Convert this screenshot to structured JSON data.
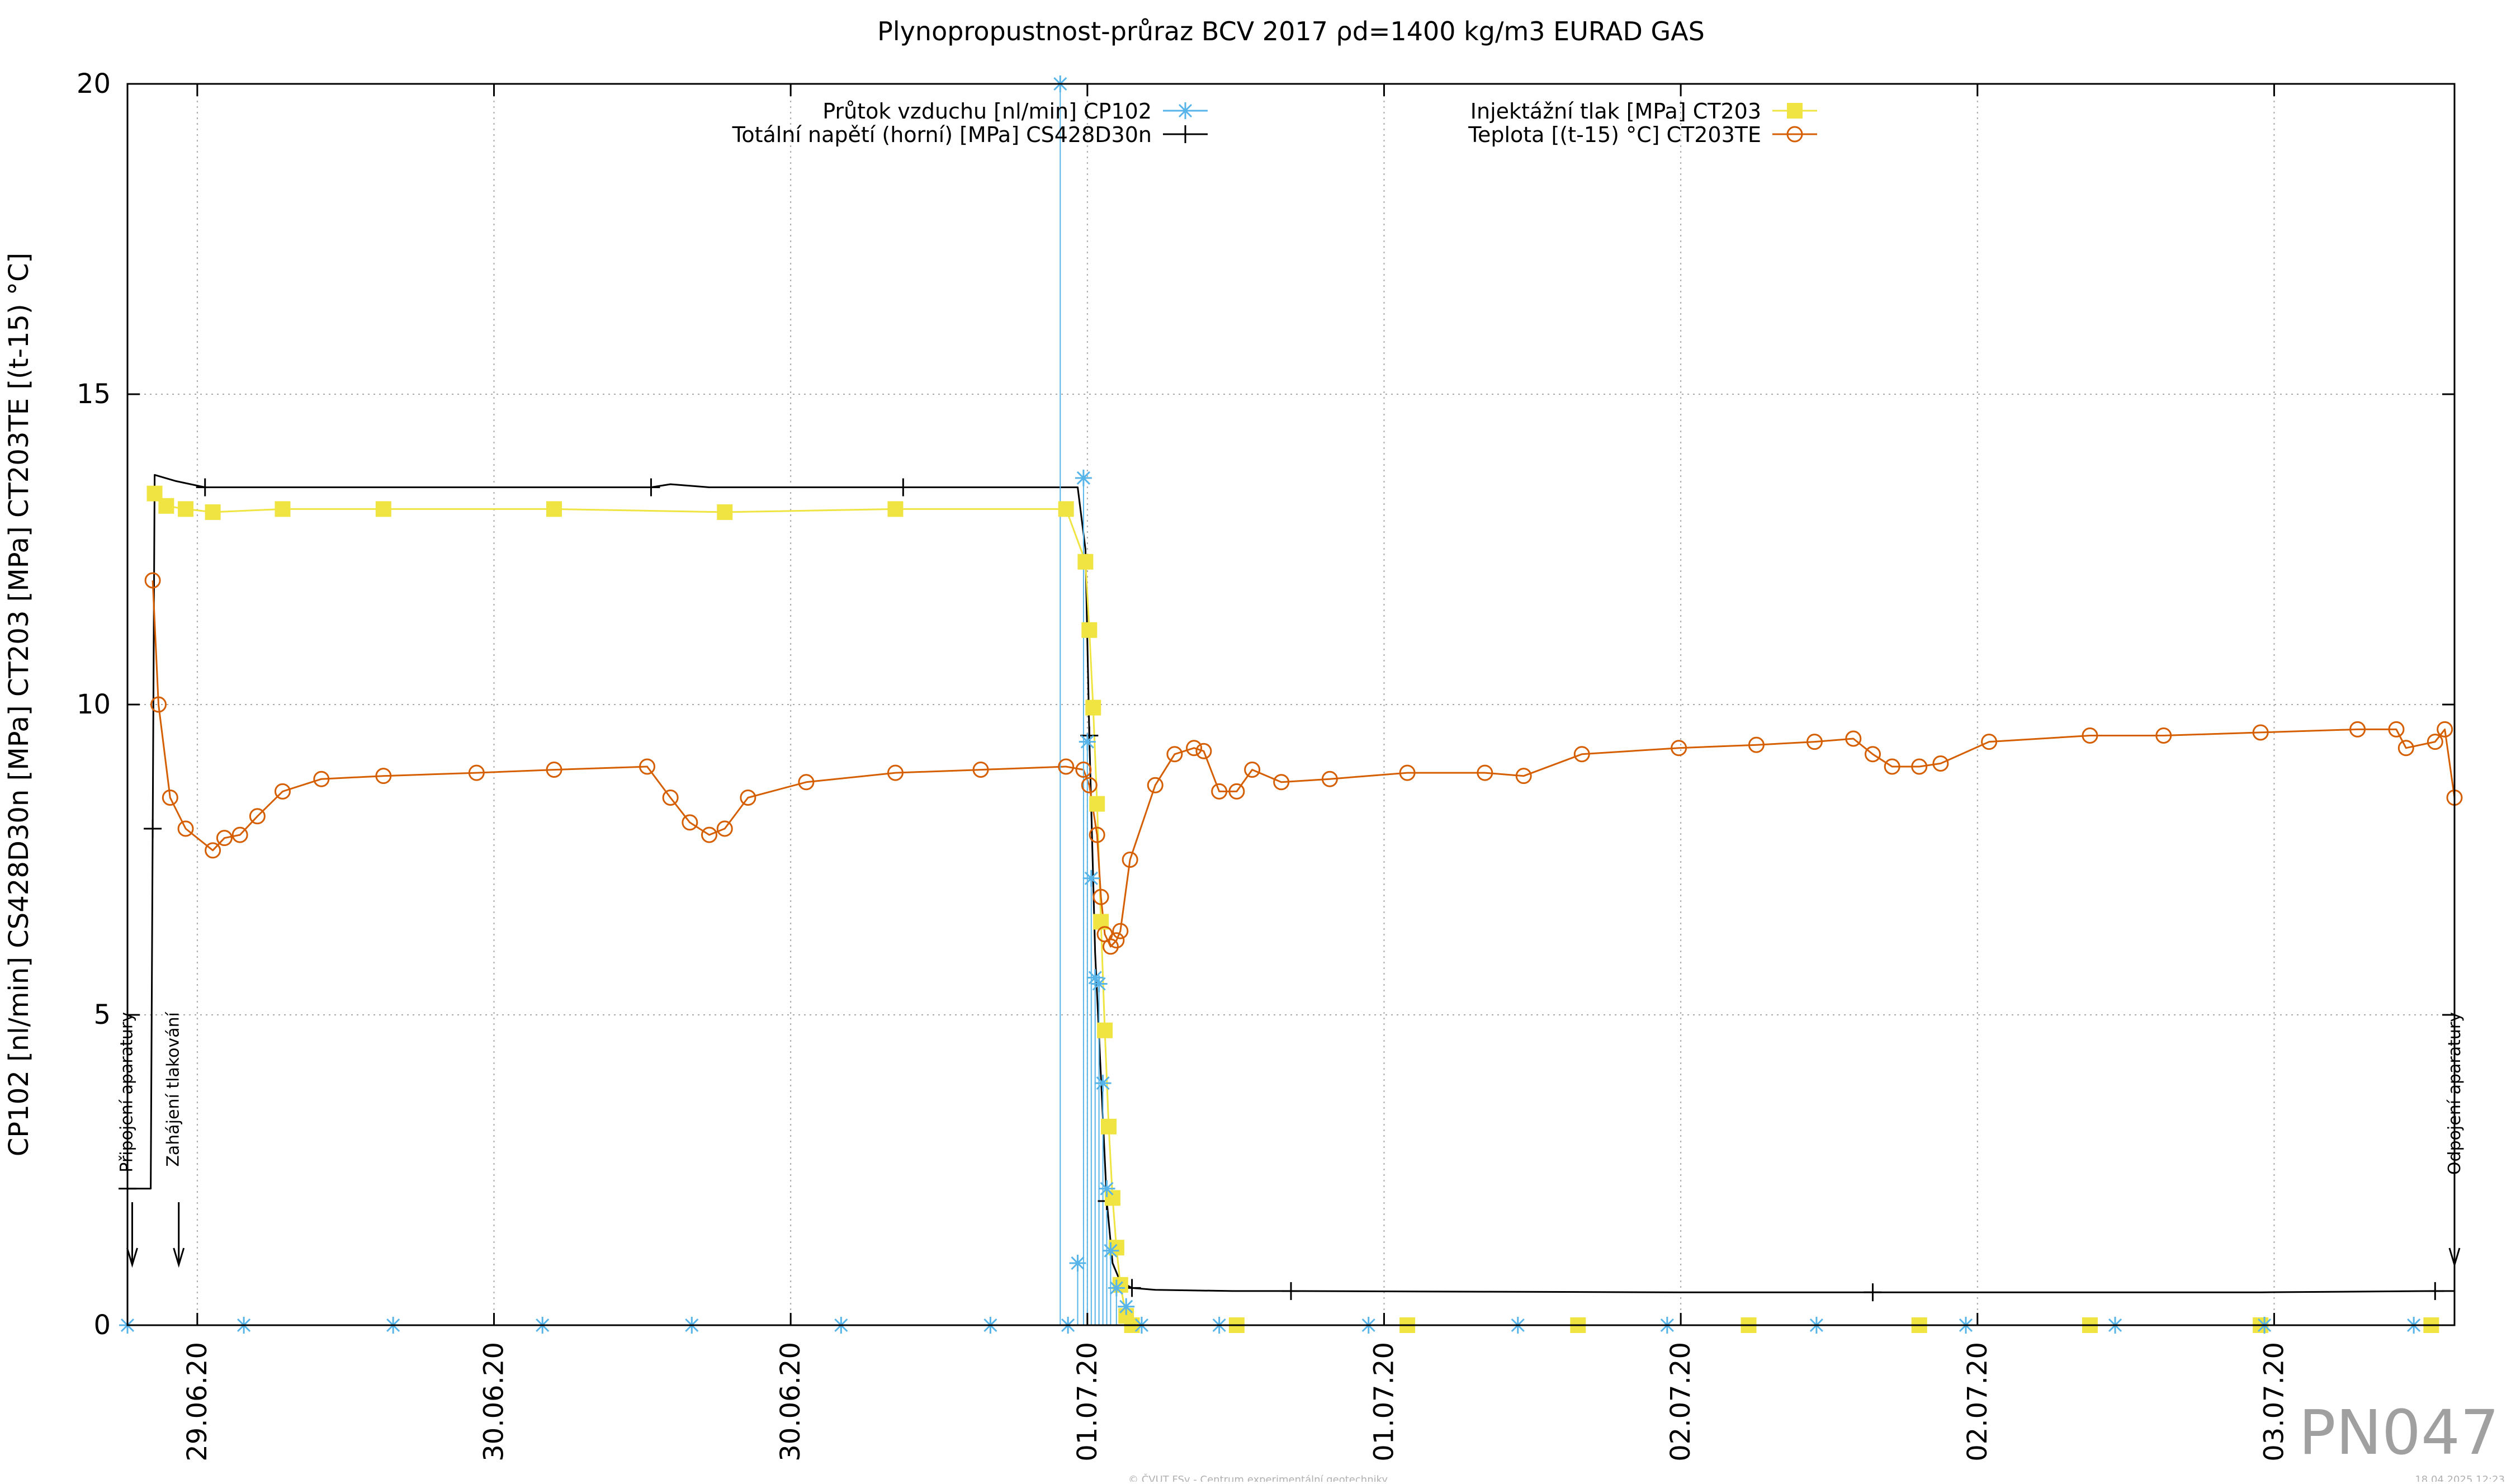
{
  "chart_data": {
    "type": "line",
    "title": "Plynopropustnost-průraz BCV 2017 ρd=1400 kg/m3 EURAD GAS",
    "ylabel": "CP102 [nl/min] CS428D30n [MPa] CT203 [MPa] CT203TE [(t-15) °C]",
    "xlabel": "",
    "ylim": [
      0,
      20
    ],
    "xlim_hours": [
      0,
      120
    ],
    "y_ticks": [
      0,
      5,
      10,
      15,
      20
    ],
    "x_tick_positions_hours": [
      3.6,
      18.9,
      34.2,
      49.5,
      64.8,
      80.1,
      95.4,
      110.7
    ],
    "x_tick_labels": [
      "29.06.20",
      "30.06.20",
      "30.06.20",
      "01.07.20",
      "01.07.20",
      "02.07.20",
      "02.07.20",
      "03.07.20"
    ],
    "grid": true,
    "legend_placement": "top",
    "legend": [
      {
        "label": "Průtok vzduchu [nl/min] CP102",
        "color": "#56b4e9",
        "marker": "asterisk"
      },
      {
        "label": "Totální napětí (horní) [MPa] CS428D30n",
        "color": "#000000",
        "marker": "plus"
      },
      {
        "label": "Injektážní tlak [MPa] CT203",
        "color": "#f0e442",
        "marker": "square"
      },
      {
        "label": "Teplota [(t-15) °C] CT203TE",
        "color": "#d55e00",
        "marker": "circle"
      }
    ],
    "annotations": [
      {
        "text": "Připojení aparatury",
        "x_hours": 0.1
      },
      {
        "text": "Zahájení tlakování",
        "x_hours": 2.5
      },
      {
        "text": "Odpojení aparatury",
        "x_hours": 120
      }
    ],
    "series": [
      {
        "name": "Totální napětí (horní) [MPa] CS428D30n",
        "color": "#000000",
        "marker": "plus",
        "x": [
          0.0,
          0.1,
          1.2,
          1.3,
          1.4,
          2.5,
          4.0,
          10,
          20,
          27,
          28,
          30,
          40,
          49.0,
          49.4,
          49.6,
          49.9,
          50.2,
          50.5,
          50.8,
          51.2,
          51.8,
          53,
          57,
          60,
          70,
          80,
          90,
          100,
          110,
          119,
          120
        ],
        "y": [
          2.2,
          2.2,
          2.2,
          8.0,
          13.7,
          13.6,
          13.5,
          13.5,
          13.5,
          13.5,
          13.55,
          13.5,
          13.5,
          13.5,
          12.5,
          9.5,
          6.0,
          4.0,
          2.0,
          1.0,
          0.7,
          0.6,
          0.57,
          0.55,
          0.55,
          0.54,
          0.53,
          0.53,
          0.53,
          0.53,
          0.55,
          0.55
        ]
      },
      {
        "name": "Injektážní tlak [MPa] CT203",
        "color": "#f0e442",
        "marker": "square",
        "x": [
          1.4,
          2.0,
          3.0,
          4.4,
          8,
          13.2,
          22.0,
          30.8,
          39.6,
          48.4,
          49.4,
          49.6,
          49.8,
          50.0,
          50.2,
          50.4,
          50.6,
          50.8,
          51.0,
          51.2,
          51.5,
          51.8,
          57.2,
          66.0,
          74.8,
          83.6,
          92.4,
          101.2,
          110.0,
          118.8
        ],
        "y": [
          13.4,
          13.2,
          13.15,
          13.1,
          13.15,
          13.15,
          13.15,
          13.1,
          13.15,
          13.15,
          12.3,
          11.2,
          9.95,
          8.4,
          6.5,
          4.75,
          3.2,
          2.05,
          1.25,
          0.65,
          0.15,
          0.0,
          0.0,
          0.0,
          0.0,
          0.0,
          0.0,
          0.0,
          0.0,
          0.0
        ]
      },
      {
        "name": "Teplota [(t-15) °C] CT203TE",
        "color": "#d55e00",
        "marker": "circle",
        "x": [
          1.3,
          1.6,
          2.2,
          3.0,
          4.4,
          5.0,
          5.8,
          6.7,
          8.0,
          10.0,
          13.2,
          18.0,
          22.0,
          26.8,
          28.0,
          29.0,
          30.0,
          30.8,
          32.0,
          35.0,
          39.6,
          44.0,
          48.4,
          49.3,
          49.6,
          50.0,
          50.2,
          50.4,
          50.7,
          51.0,
          51.2,
          51.7,
          53.0,
          54.0,
          55.0,
          55.5,
          56.3,
          57.2,
          58.0,
          59.5,
          62.0,
          66.0,
          70.0,
          72.0,
          75.0,
          80.0,
          84.0,
          87.0,
          89.0,
          90.0,
          91.0,
          92.4,
          93.5,
          96.0,
          101.2,
          105.0,
          110.0,
          115.0,
          117.0,
          117.5,
          119.0,
          119.5,
          120.0
        ],
        "y": [
          12.0,
          10.0,
          8.5,
          8.0,
          7.65,
          7.85,
          7.9,
          8.2,
          8.6,
          8.8,
          8.85,
          8.9,
          8.95,
          9.0,
          8.5,
          8.1,
          7.9,
          8.0,
          8.5,
          8.75,
          8.9,
          8.95,
          9.0,
          8.95,
          8.7,
          7.9,
          6.9,
          6.3,
          6.1,
          6.2,
          6.35,
          7.5,
          8.7,
          9.2,
          9.3,
          9.25,
          8.6,
          8.6,
          8.95,
          8.75,
          8.8,
          8.9,
          8.9,
          8.85,
          9.2,
          9.3,
          9.35,
          9.4,
          9.45,
          9.2,
          9.0,
          9.0,
          9.05,
          9.4,
          9.5,
          9.5,
          9.55,
          9.6,
          9.6,
          9.3,
          9.4,
          9.6,
          8.5
        ]
      },
      {
        "name": "Průtok vzduchu [nl/min] CP102",
        "color": "#56b4e9",
        "marker": "asterisk",
        "x": [
          0.0,
          6.0,
          13.7,
          21.4,
          29.1,
          36.8,
          44.5,
          48.1,
          48.5,
          49.0,
          49.3,
          49.5,
          49.7,
          49.9,
          50.1,
          50.3,
          50.5,
          50.7,
          51.0,
          51.5,
          52.3,
          56.3,
          64.0,
          71.7,
          79.4,
          87.1,
          94.8,
          102.5,
          110.2,
          117.9
        ],
        "y": [
          0.0,
          0.0,
          0.0,
          0.0,
          0.0,
          0.0,
          0.0,
          20.0,
          0.0,
          1.0,
          13.65,
          9.4,
          7.2,
          5.6,
          5.5,
          3.9,
          2.2,
          1.2,
          0.6,
          0.3,
          0.0,
          0.0,
          0.0,
          0.0,
          0.0,
          0.0,
          0.0,
          0.0,
          0.0,
          0.0
        ]
      }
    ]
  },
  "watermark": "PN047",
  "footer": {
    "credit": "© ČVUT FSv - Centrum experimentální geotechniky",
    "timestamp": "18.04.2025 12:23"
  }
}
